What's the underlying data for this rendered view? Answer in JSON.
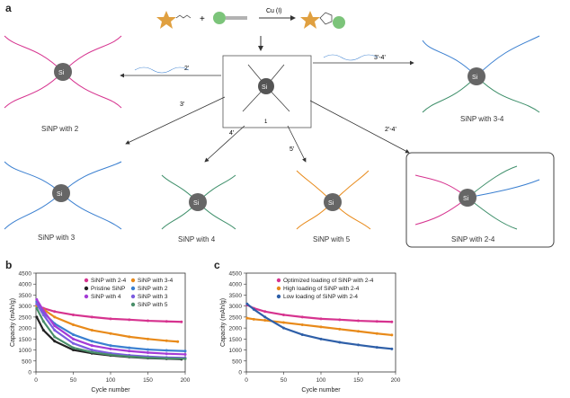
{
  "panels": {
    "a": "a",
    "b": "b",
    "c": "c"
  },
  "scheme": {
    "catalyst": "Cu (I)",
    "center_label": "Si",
    "compound": "1",
    "arrow_labels": [
      "2'",
      "3'-4'",
      "3'",
      "4'",
      "5'",
      "2'-4'"
    ],
    "products": [
      {
        "name": "SiNP with 2"
      },
      {
        "name": "SiNP with 3-4"
      },
      {
        "name": "SiNP with 3"
      },
      {
        "name": "SiNP with 4"
      },
      {
        "name": "SiNP with 5"
      },
      {
        "name": "SiNP with 2-4"
      }
    ],
    "colors": {
      "pink": "#d6338f",
      "blue": "#3a7fd0",
      "green": "#3e8f6a",
      "orange": "#e88a1a",
      "core": "#555555",
      "star": "#e0a040",
      "dot": "#7cc47a"
    }
  },
  "chart_data": [
    {
      "type": "line",
      "panel": "b",
      "xlabel": "Cycle number",
      "ylabel": "Capacity (mAh/g)",
      "xlim": [
        0,
        200
      ],
      "ylim": [
        0,
        4500
      ],
      "xticks": [
        0,
        50,
        100,
        150,
        200
      ],
      "yticks": [
        0,
        500,
        1000,
        1500,
        2000,
        2500,
        3000,
        3500,
        4000,
        4500
      ],
      "legend": "top-right",
      "series": [
        {
          "name": "SiNP with 2-4",
          "color": "#d6338f",
          "x": [
            1,
            10,
            25,
            50,
            75,
            100,
            125,
            150,
            175,
            195
          ],
          "y": [
            3050,
            2900,
            2750,
            2600,
            2500,
            2420,
            2380,
            2330,
            2300,
            2280
          ]
        },
        {
          "name": "SiNP with 3-4",
          "color": "#e88a1a",
          "x": [
            1,
            10,
            25,
            50,
            75,
            100,
            125,
            150,
            175,
            190
          ],
          "y": [
            3000,
            2850,
            2500,
            2150,
            1900,
            1750,
            1600,
            1500,
            1420,
            1380
          ]
        },
        {
          "name": "Pristine SiNP",
          "color": "#222222",
          "x": [
            1,
            10,
            25,
            50,
            75,
            100,
            125,
            150,
            175,
            195
          ],
          "y": [
            2500,
            1900,
            1400,
            1000,
            850,
            750,
            680,
            630,
            600,
            580
          ]
        },
        {
          "name": "SiNP with 2",
          "color": "#3a7fd0",
          "x": [
            1,
            10,
            25,
            50,
            75,
            100,
            125,
            150,
            175,
            200
          ],
          "y": [
            3200,
            2700,
            2200,
            1700,
            1400,
            1200,
            1100,
            1020,
            980,
            950
          ]
        },
        {
          "name": "SiNP with 4",
          "color": "#a43bd6",
          "x": [
            1,
            10,
            25,
            50,
            75,
            100,
            125,
            150,
            175,
            200
          ],
          "y": [
            3300,
            2800,
            2100,
            1500,
            1200,
            1050,
            950,
            880,
            830,
            800
          ]
        },
        {
          "name": "SiNP with 3",
          "color": "#7b5ce0",
          "x": [
            1,
            10,
            25,
            50,
            75,
            100,
            125,
            150,
            175,
            200
          ],
          "y": [
            3100,
            2600,
            1900,
            1300,
            1000,
            850,
            760,
            700,
            660,
            640
          ]
        },
        {
          "name": "SiNP with 5",
          "color": "#4a8f6a",
          "x": [
            1,
            10,
            25,
            50,
            75,
            100,
            125,
            150,
            175,
            200
          ],
          "y": [
            2900,
            2300,
            1600,
            1100,
            900,
            780,
            700,
            650,
            620,
            600
          ]
        }
      ]
    },
    {
      "type": "line",
      "panel": "c",
      "xlabel": "Cycle number",
      "ylabel": "Capacity (mAh/g)",
      "xlim": [
        0,
        200
      ],
      "ylim": [
        0,
        4500
      ],
      "xticks": [
        0,
        50,
        100,
        150,
        200
      ],
      "yticks": [
        0,
        500,
        1000,
        1500,
        2000,
        2500,
        3000,
        3500,
        4000,
        4500
      ],
      "legend": "top-right",
      "series": [
        {
          "name": "Optimized loading of SiNP with 2-4",
          "color": "#d6338f",
          "x": [
            1,
            10,
            25,
            50,
            75,
            100,
            125,
            150,
            175,
            195
          ],
          "y": [
            3050,
            2900,
            2750,
            2600,
            2500,
            2420,
            2380,
            2330,
            2300,
            2280
          ]
        },
        {
          "name": "High loading of SiNP with 2-4",
          "color": "#e88a1a",
          "x": [
            1,
            10,
            25,
            50,
            75,
            100,
            125,
            150,
            175,
            195
          ],
          "y": [
            2450,
            2400,
            2350,
            2250,
            2150,
            2050,
            1950,
            1850,
            1750,
            1680
          ]
        },
        {
          "name": "Low loading of SiNP with 2-4",
          "color": "#2e5fa8",
          "x": [
            1,
            10,
            25,
            50,
            75,
            100,
            125,
            150,
            175,
            195
          ],
          "y": [
            3100,
            2850,
            2500,
            2000,
            1700,
            1500,
            1350,
            1230,
            1120,
            1050
          ]
        }
      ]
    }
  ]
}
